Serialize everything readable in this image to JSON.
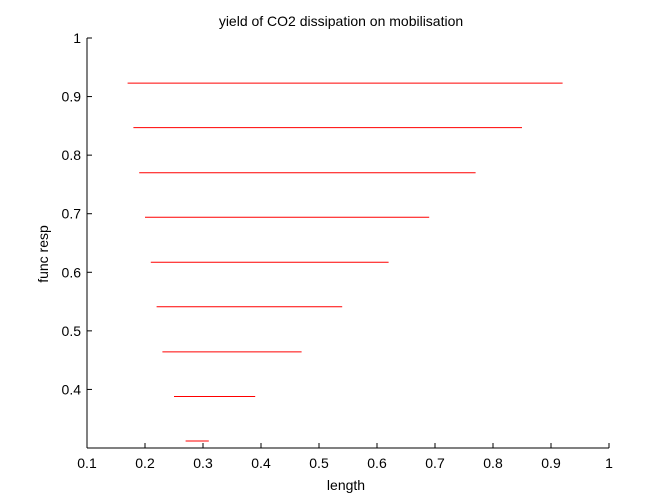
{
  "chart_data": {
    "type": "line",
    "title": "yield of CO2 dissipation on mobilisation",
    "xlabel": "length",
    "ylabel": "func resp",
    "xlim": [
      0.1,
      1.0
    ],
    "ylim": [
      0.3,
      1.0
    ],
    "x_ticks": [
      "0.1",
      "0.2",
      "0.3",
      "0.4",
      "0.5",
      "0.6",
      "0.7",
      "0.8",
      "0.9",
      "1"
    ],
    "y_ticks": [
      "0.4",
      "0.5",
      "0.6",
      "0.7",
      "0.8",
      "0.9",
      "1"
    ],
    "grid": false,
    "line_color": "#ff0000",
    "series": [
      {
        "x": [
          0.17,
          0.92
        ],
        "y": [
          0.923,
          0.923
        ]
      },
      {
        "x": [
          0.18,
          0.85
        ],
        "y": [
          0.847,
          0.847
        ]
      },
      {
        "x": [
          0.19,
          0.77
        ],
        "y": [
          0.77,
          0.77
        ]
      },
      {
        "x": [
          0.2,
          0.69
        ],
        "y": [
          0.694,
          0.694
        ]
      },
      {
        "x": [
          0.21,
          0.62
        ],
        "y": [
          0.617,
          0.617
        ]
      },
      {
        "x": [
          0.22,
          0.54
        ],
        "y": [
          0.541,
          0.541
        ]
      },
      {
        "x": [
          0.23,
          0.47
        ],
        "y": [
          0.464,
          0.464
        ]
      },
      {
        "x": [
          0.25,
          0.39
        ],
        "y": [
          0.388,
          0.388
        ]
      },
      {
        "x": [
          0.27,
          0.31
        ],
        "y": [
          0.312,
          0.312
        ]
      }
    ]
  }
}
